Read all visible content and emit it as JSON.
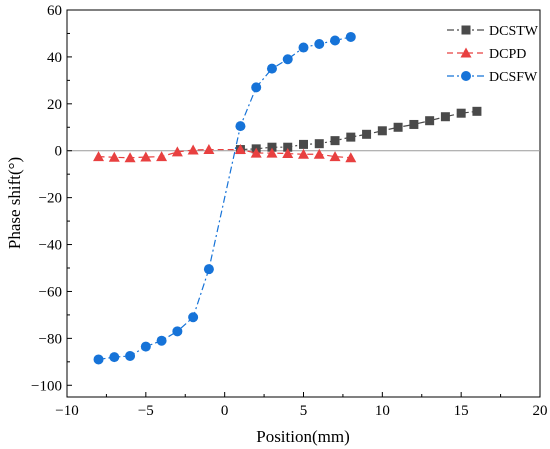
{
  "chart_data": {
    "type": "scatter",
    "xlabel": "Position(mm)",
    "ylabel": "Phase shift(°)",
    "xlim": [
      -10,
      20
    ],
    "ylim": [
      -105,
      60
    ],
    "x_ticks": [
      -10,
      -5,
      0,
      5,
      10,
      15,
      20
    ],
    "y_ticks": [
      -100,
      -80,
      -60,
      -40,
      -20,
      0,
      20,
      40,
      60
    ],
    "x_tick_labels": [
      "−10",
      "−5",
      "0",
      "5",
      "10",
      "15",
      "20"
    ],
    "y_tick_labels": [
      "−100",
      "−80",
      "−60",
      "−40",
      "−20",
      "0",
      "20",
      "40",
      "60"
    ],
    "grid": false,
    "reference_line": {
      "y": 0,
      "color": "#9a9a9a"
    },
    "legend_position": "top-right",
    "series": [
      {
        "name": "DCSTW",
        "color": "#4a4a4a",
        "marker": "square",
        "line_style": "dash-dot",
        "x": [
          1,
          2,
          3,
          4,
          5,
          6,
          7,
          8,
          9,
          10,
          11,
          12,
          13,
          14,
          15,
          16
        ],
        "y": [
          0.5,
          0.8,
          1.5,
          1.5,
          2.7,
          3.0,
          4.3,
          5.8,
          7.0,
          8.5,
          10.0,
          11.2,
          12.8,
          14.5,
          16.0,
          16.8
        ]
      },
      {
        "name": "DCPD",
        "color": "#e84040",
        "marker": "triangle",
        "line_style": "dashed",
        "x": [
          -8,
          -7,
          -6,
          -5,
          -4,
          -3,
          -2,
          -1,
          1,
          2,
          3,
          4,
          5,
          6,
          7,
          8
        ],
        "y": [
          -2.5,
          -2.8,
          -3.0,
          -2.7,
          -2.5,
          -0.5,
          0.3,
          0.5,
          0.5,
          -1.0,
          -1.0,
          -1.2,
          -1.5,
          -1.5,
          -2.5,
          -3.0
        ]
      },
      {
        "name": "DCSFW",
        "color": "#1673d8",
        "marker": "circle",
        "line_style": "dash-dot",
        "x": [
          -8,
          -7,
          -6,
          -5,
          -4,
          -3,
          -2,
          -1,
          1,
          2,
          3,
          4,
          5,
          6,
          7,
          8
        ],
        "y": [
          -89,
          -88,
          -87.5,
          -83.5,
          -81,
          -77,
          -71,
          -50.5,
          10.5,
          27,
          35,
          39,
          44,
          45.5,
          47,
          48.5
        ]
      }
    ]
  }
}
